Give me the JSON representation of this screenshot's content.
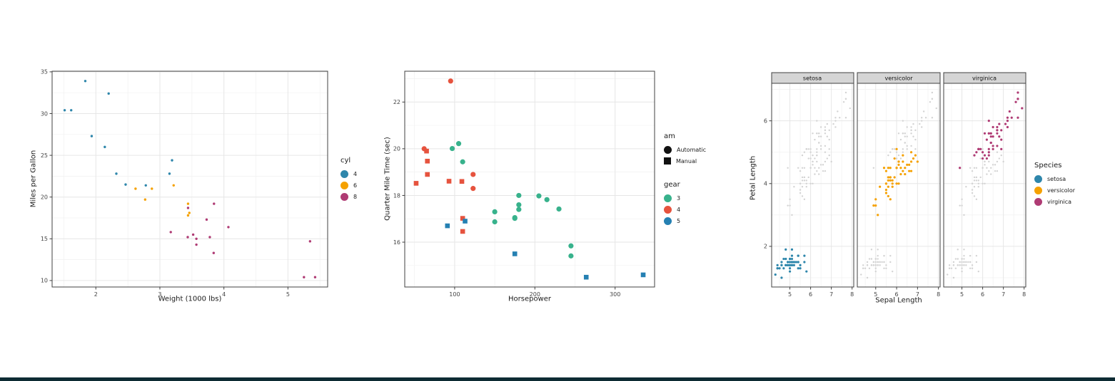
{
  "page": {
    "background": "#ffffff",
    "bottom_bar_color": "#0D2B33"
  },
  "theme": {
    "panel_bg": "#ffffff",
    "panel_border": "#404040",
    "grid_major": "#e6e6e6",
    "grid_minor": "#f1f1f1",
    "tick_color": "#404040",
    "tick_label_color": "#444444",
    "strip_bg": "#d5d5d5",
    "strip_border": "#404040",
    "glyph_black": "#111111",
    "background_points": "#d3d3d3"
  },
  "chart_data": [
    {
      "type": "scatter",
      "title": "",
      "xlabel": "Weight (1000 lbs)",
      "ylabel": "Miles per Gallon",
      "x_ticks": [
        2,
        3,
        4,
        5
      ],
      "y_ticks": [
        10,
        15,
        20,
        25,
        30,
        35
      ],
      "x_minor": [
        1.5,
        2.5,
        3.5,
        4.5,
        5.5
      ],
      "y_minor": [
        12.5,
        17.5,
        22.5,
        27.5,
        32.5
      ],
      "xlim": [
        1.317,
        5.62
      ],
      "ylim": [
        9.225,
        35.075
      ],
      "grid": true,
      "legend": {
        "title": "cyl",
        "position": "right",
        "items": [
          {
            "label": "4",
            "color": "#2E86AB"
          },
          {
            "label": "6",
            "color": "#F5A100"
          },
          {
            "label": "8",
            "color": "#AF3B74"
          }
        ]
      },
      "series": [
        {
          "name": "4",
          "color": "#2E86AB",
          "points": [
            [
              2.32,
              22.8
            ],
            [
              3.19,
              24.4
            ],
            [
              3.15,
              22.8
            ],
            [
              2.2,
              32.4
            ],
            [
              1.615,
              30.4
            ],
            [
              1.835,
              33.9
            ],
            [
              2.465,
              21.5
            ],
            [
              1.935,
              27.3
            ],
            [
              2.14,
              26.0
            ],
            [
              1.513,
              30.4
            ],
            [
              2.78,
              21.4
            ]
          ]
        },
        {
          "name": "6",
          "color": "#F5A100",
          "points": [
            [
              2.62,
              21.0
            ],
            [
              2.875,
              21.0
            ],
            [
              3.215,
              21.4
            ],
            [
              3.46,
              18.1
            ],
            [
              3.44,
              19.2
            ],
            [
              3.44,
              17.8
            ],
            [
              2.77,
              19.7
            ]
          ]
        },
        {
          "name": "8",
          "color": "#AF3B74",
          "points": [
            [
              3.44,
              18.7
            ],
            [
              3.57,
              14.3
            ],
            [
              4.07,
              16.4
            ],
            [
              3.73,
              17.3
            ],
            [
              3.78,
              15.2
            ],
            [
              5.25,
              10.4
            ],
            [
              5.424,
              10.4
            ],
            [
              5.345,
              14.7
            ],
            [
              3.52,
              15.5
            ],
            [
              3.435,
              15.2
            ],
            [
              3.84,
              13.3
            ],
            [
              3.845,
              19.2
            ],
            [
              3.17,
              15.8
            ],
            [
              3.57,
              15.0
            ]
          ]
        }
      ]
    },
    {
      "type": "scatter",
      "title": "",
      "xlabel": "Horsepower",
      "ylabel": "Quarter Mile Time (sec)",
      "x_ticks": [
        100,
        200,
        300
      ],
      "y_ticks": [
        16,
        18,
        20,
        22
      ],
      "x_minor": [
        50,
        150,
        250
      ],
      "y_minor": [
        15,
        17,
        19,
        21,
        23
      ],
      "xlim": [
        37.8,
        349.2
      ],
      "ylim": [
        14.08,
        23.32
      ],
      "grid": true,
      "legend_shape": {
        "title": "am",
        "glyph_color": "#111111",
        "items": [
          {
            "label": "Automatic",
            "shape": "circle"
          },
          {
            "label": "Manual",
            "shape": "square"
          }
        ]
      },
      "legend_color": {
        "title": "gear",
        "items": [
          {
            "label": "3",
            "color": "#38B28C"
          },
          {
            "label": "4",
            "color": "#E6533E"
          },
          {
            "label": "5",
            "color": "#2580B2"
          }
        ]
      },
      "series": [
        {
          "name": "gear 3 / automatic",
          "shape": "circle",
          "color": "#38B28C",
          "points": [
            [
              110,
              19.44
            ],
            [
              175,
              17.02
            ],
            [
              105,
              20.22
            ],
            [
              245,
              15.84
            ],
            [
              180,
              17.4
            ],
            [
              180,
              17.6
            ],
            [
              180,
              18.0
            ],
            [
              205,
              17.98
            ],
            [
              215,
              17.82
            ],
            [
              230,
              17.42
            ],
            [
              97,
              20.01
            ],
            [
              150,
              16.87
            ],
            [
              150,
              17.3
            ],
            [
              245,
              15.41
            ],
            [
              175,
              17.05
            ]
          ]
        },
        {
          "name": "gear 4 / automatic",
          "shape": "circle",
          "color": "#E6533E",
          "points": [
            [
              62,
              20.0
            ],
            [
              95,
              22.9
            ],
            [
              123,
              18.3
            ],
            [
              123,
              18.9
            ]
          ]
        },
        {
          "name": "gear 4 / manual",
          "shape": "square",
          "color": "#E6533E",
          "points": [
            [
              110,
              16.46
            ],
            [
              110,
              17.02
            ],
            [
              93,
              18.61
            ],
            [
              66,
              19.47
            ],
            [
              52,
              18.52
            ],
            [
              65,
              19.9
            ],
            [
              66,
              18.9
            ],
            [
              109,
              18.6
            ]
          ]
        },
        {
          "name": "gear 5 / manual",
          "shape": "square",
          "color": "#2580B2",
          "points": [
            [
              91,
              16.7
            ],
            [
              113,
              16.9
            ],
            [
              264,
              14.5
            ],
            [
              175,
              15.5
            ],
            [
              335,
              14.6
            ]
          ]
        }
      ]
    },
    {
      "type": "scatter",
      "title": "",
      "xlabel": "Sepal Length",
      "ylabel": "Petal Length",
      "x_ticks": [
        5,
        6,
        7,
        8
      ],
      "y_ticks": [
        2,
        4,
        6
      ],
      "x_minor": [
        4.5,
        5.5,
        6.5,
        7.5
      ],
      "y_minor": [
        1,
        3,
        5,
        7
      ],
      "xlim": [
        4.12,
        8.08
      ],
      "ylim": [
        0.705,
        7.195
      ],
      "grid": true,
      "facets": [
        {
          "label": "setosa"
        },
        {
          "label": "versicolor"
        },
        {
          "label": "virginica"
        }
      ],
      "legend": {
        "title": "Species",
        "position": "right",
        "items": [
          {
            "label": "setosa",
            "color": "#2E86AB"
          },
          {
            "label": "versicolor",
            "color": "#F5A100"
          },
          {
            "label": "virginica",
            "color": "#AF3B74"
          }
        ]
      },
      "series": [
        {
          "name": "setosa",
          "color": "#2E86AB",
          "points": [
            [
              5.1,
              1.4
            ],
            [
              4.9,
              1.4
            ],
            [
              4.7,
              1.3
            ],
            [
              4.6,
              1.5
            ],
            [
              5.0,
              1.4
            ],
            [
              5.4,
              1.7
            ],
            [
              4.6,
              1.4
            ],
            [
              5.0,
              1.5
            ],
            [
              4.4,
              1.4
            ],
            [
              4.9,
              1.5
            ],
            [
              5.4,
              1.5
            ],
            [
              4.8,
              1.6
            ],
            [
              4.8,
              1.4
            ],
            [
              4.3,
              1.1
            ],
            [
              5.8,
              1.2
            ],
            [
              5.7,
              1.5
            ],
            [
              5.4,
              1.3
            ],
            [
              5.1,
              1.4
            ],
            [
              5.7,
              1.7
            ],
            [
              5.1,
              1.5
            ],
            [
              5.4,
              1.7
            ],
            [
              5.1,
              1.5
            ],
            [
              4.6,
              1.0
            ],
            [
              5.1,
              1.7
            ],
            [
              4.8,
              1.9
            ],
            [
              5.0,
              1.6
            ],
            [
              5.0,
              1.6
            ],
            [
              5.2,
              1.5
            ],
            [
              5.2,
              1.4
            ],
            [
              4.7,
              1.6
            ],
            [
              4.8,
              1.6
            ],
            [
              5.4,
              1.5
            ],
            [
              5.2,
              1.5
            ],
            [
              5.5,
              1.4
            ],
            [
              4.9,
              1.5
            ],
            [
              5.0,
              1.2
            ],
            [
              5.5,
              1.3
            ],
            [
              4.9,
              1.4
            ],
            [
              4.4,
              1.3
            ],
            [
              5.1,
              1.5
            ],
            [
              5.0,
              1.3
            ],
            [
              4.5,
              1.3
            ],
            [
              4.4,
              1.3
            ],
            [
              5.0,
              1.6
            ],
            [
              5.1,
              1.9
            ],
            [
              4.8,
              1.4
            ],
            [
              5.1,
              1.6
            ],
            [
              4.6,
              1.4
            ],
            [
              5.3,
              1.5
            ],
            [
              5.0,
              1.4
            ]
          ]
        },
        {
          "name": "versicolor",
          "color": "#F5A100",
          "points": [
            [
              7.0,
              4.7
            ],
            [
              6.4,
              4.5
            ],
            [
              6.9,
              4.9
            ],
            [
              5.5,
              4.0
            ],
            [
              6.5,
              4.6
            ],
            [
              5.7,
              4.5
            ],
            [
              6.3,
              4.7
            ],
            [
              4.9,
              3.3
            ],
            [
              6.6,
              4.6
            ],
            [
              5.2,
              3.9
            ],
            [
              5.0,
              3.5
            ],
            [
              5.9,
              4.2
            ],
            [
              6.0,
              4.0
            ],
            [
              6.1,
              4.7
            ],
            [
              5.6,
              3.6
            ],
            [
              6.7,
              4.4
            ],
            [
              5.6,
              4.5
            ],
            [
              5.8,
              4.1
            ],
            [
              6.2,
              4.5
            ],
            [
              5.6,
              3.9
            ],
            [
              5.9,
              4.8
            ],
            [
              6.1,
              4.0
            ],
            [
              6.3,
              4.9
            ],
            [
              6.1,
              4.7
            ],
            [
              6.4,
              4.3
            ],
            [
              6.6,
              4.4
            ],
            [
              6.8,
              4.8
            ],
            [
              6.7,
              5.0
            ],
            [
              6.0,
              4.5
            ],
            [
              5.7,
              3.5
            ],
            [
              5.5,
              3.8
            ],
            [
              5.5,
              3.7
            ],
            [
              5.8,
              3.9
            ],
            [
              6.0,
              5.1
            ],
            [
              5.4,
              4.5
            ],
            [
              6.0,
              4.5
            ],
            [
              6.7,
              4.7
            ],
            [
              6.3,
              4.4
            ],
            [
              5.6,
              4.1
            ],
            [
              5.5,
              4.0
            ],
            [
              5.5,
              4.4
            ],
            [
              6.1,
              4.6
            ],
            [
              5.8,
              4.0
            ],
            [
              5.0,
              3.3
            ],
            [
              5.6,
              4.2
            ],
            [
              5.7,
              4.2
            ],
            [
              5.7,
              4.2
            ],
            [
              6.2,
              4.3
            ],
            [
              5.1,
              3.0
            ],
            [
              5.7,
              4.1
            ]
          ]
        },
        {
          "name": "virginica",
          "color": "#AF3B74",
          "points": [
            [
              6.3,
              6.0
            ],
            [
              5.8,
              5.1
            ],
            [
              7.1,
              5.9
            ],
            [
              6.3,
              5.6
            ],
            [
              6.5,
              5.8
            ],
            [
              7.6,
              6.6
            ],
            [
              4.9,
              4.5
            ],
            [
              7.3,
              6.3
            ],
            [
              6.7,
              5.8
            ],
            [
              7.2,
              6.1
            ],
            [
              6.5,
              5.1
            ],
            [
              6.4,
              5.3
            ],
            [
              6.8,
              5.5
            ],
            [
              5.7,
              5.0
            ],
            [
              5.8,
              5.1
            ],
            [
              6.4,
              5.3
            ],
            [
              6.5,
              5.5
            ],
            [
              7.7,
              6.7
            ],
            [
              7.7,
              6.9
            ],
            [
              6.0,
              5.0
            ],
            [
              6.9,
              5.7
            ],
            [
              5.6,
              4.9
            ],
            [
              7.7,
              6.7
            ],
            [
              6.3,
              4.9
            ],
            [
              6.7,
              5.7
            ],
            [
              7.2,
              6.0
            ],
            [
              6.2,
              4.8
            ],
            [
              6.1,
              4.9
            ],
            [
              6.4,
              5.6
            ],
            [
              7.2,
              5.8
            ],
            [
              7.4,
              6.1
            ],
            [
              7.9,
              6.4
            ],
            [
              6.4,
              5.6
            ],
            [
              6.3,
              5.1
            ],
            [
              6.1,
              5.6
            ],
            [
              7.7,
              6.1
            ],
            [
              6.3,
              5.6
            ],
            [
              6.4,
              5.5
            ],
            [
              6.0,
              4.8
            ],
            [
              6.9,
              5.4
            ],
            [
              6.7,
              5.6
            ],
            [
              6.9,
              5.1
            ],
            [
              5.8,
              5.1
            ],
            [
              6.8,
              5.9
            ],
            [
              6.7,
              5.7
            ],
            [
              6.7,
              5.2
            ],
            [
              6.3,
              5.0
            ],
            [
              6.5,
              5.2
            ],
            [
              6.2,
              5.4
            ],
            [
              5.9,
              5.1
            ]
          ]
        }
      ]
    }
  ]
}
